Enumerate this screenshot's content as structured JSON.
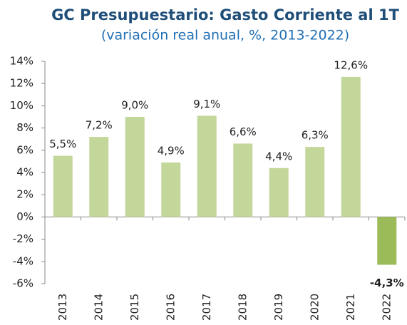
{
  "chart_data": {
    "type": "bar",
    "title": "GC Presupuestario: Gasto Corriente al 1T",
    "subtitle": "(variación real anual, %, 2013-2022)",
    "categories": [
      "2013",
      "2014",
      "2015",
      "2016",
      "2017",
      "2018",
      "2019",
      "2020",
      "2021",
      "2022"
    ],
    "values": [
      5.5,
      7.2,
      9.0,
      4.9,
      9.1,
      6.6,
      4.4,
      6.3,
      12.6,
      -4.3
    ],
    "value_labels": [
      "5,5%",
      "7,2%",
      "9,0%",
      "4,9%",
      "9,1%",
      "6,6%",
      "4,4%",
      "6,3%",
      "12,6%",
      "-4,3%"
    ],
    "color": "#c4d79b",
    "negative_color": "#9bbb59",
    "ylim": [
      -6,
      14
    ],
    "yticks": [
      {
        "value": -6,
        "label": "-6%"
      },
      {
        "value": -4,
        "label": "-4%"
      },
      {
        "value": -2,
        "label": "-2%"
      },
      {
        "value": 0,
        "label": "0%"
      },
      {
        "value": 2,
        "label": "2%"
      },
      {
        "value": 4,
        "label": "4%"
      },
      {
        "value": 6,
        "label": "6%"
      },
      {
        "value": 8,
        "label": "8%"
      },
      {
        "value": 10,
        "label": "10%"
      },
      {
        "value": 12,
        "label": "12%"
      },
      {
        "value": 14,
        "label": "14%"
      }
    ],
    "grid": false
  }
}
